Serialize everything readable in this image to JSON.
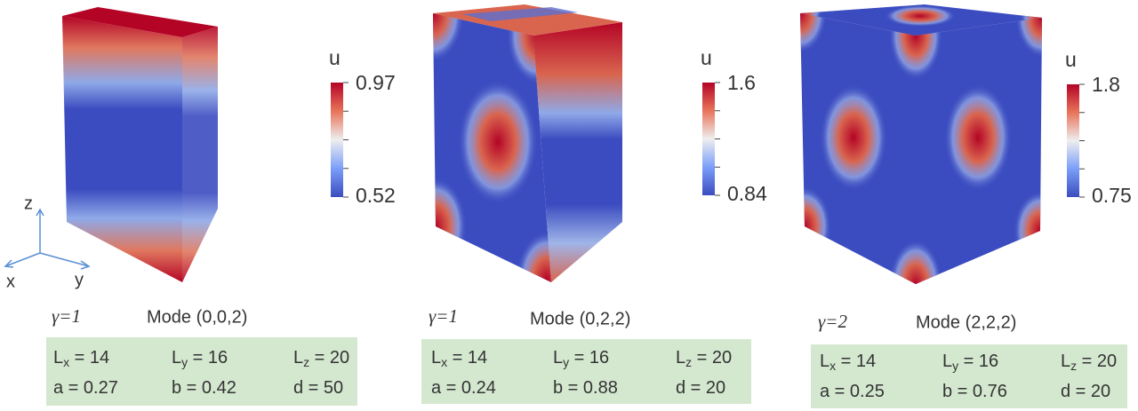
{
  "axes": {
    "z": "z",
    "x": "x",
    "y": "y"
  },
  "panels": [
    {
      "colorbar": {
        "label": "u",
        "max": "0.97",
        "min": "0.52"
      },
      "gamma": "γ=1",
      "mode": "Mode (0,0,2)",
      "params": [
        [
          {
            "main": "L",
            "sub": "x",
            "rest": " = 14"
          },
          {
            "main": "L",
            "sub": "y",
            "rest": " = 16"
          },
          {
            "main": "L",
            "sub": "z",
            "rest": " = 20"
          }
        ],
        [
          {
            "main": "a = 0.27"
          },
          {
            "main": "b = 0.42"
          },
          {
            "main": "d = 50"
          }
        ]
      ]
    },
    {
      "colorbar": {
        "label": "u",
        "max": "1.6",
        "min": "0.84"
      },
      "gamma": "γ=1",
      "mode": "Mode (0,2,2)",
      "params": [
        [
          {
            "main": "L",
            "sub": "x",
            "rest": " = 14"
          },
          {
            "main": "L",
            "sub": "y",
            "rest": " = 16"
          },
          {
            "main": "L",
            "sub": "z",
            "rest": " = 20"
          }
        ],
        [
          {
            "main": "a = 0.24"
          },
          {
            "main": "b = 0.88"
          },
          {
            "main": "d = 20"
          }
        ]
      ]
    },
    {
      "colorbar": {
        "label": "u",
        "max": "1.8",
        "min": "0.75"
      },
      "gamma": "γ=2",
      "mode": "Mode (2,2,2)",
      "params": [
        [
          {
            "main": "L",
            "sub": "x",
            "rest": " = 14"
          },
          {
            "main": "L",
            "sub": "y",
            "rest": " = 16"
          },
          {
            "main": "L",
            "sub": "z",
            "rest": " = 20"
          }
        ],
        [
          {
            "main": "a = 0.25"
          },
          {
            "main": "b = 0.76"
          },
          {
            "main": "d = 20"
          }
        ]
      ]
    }
  ]
}
